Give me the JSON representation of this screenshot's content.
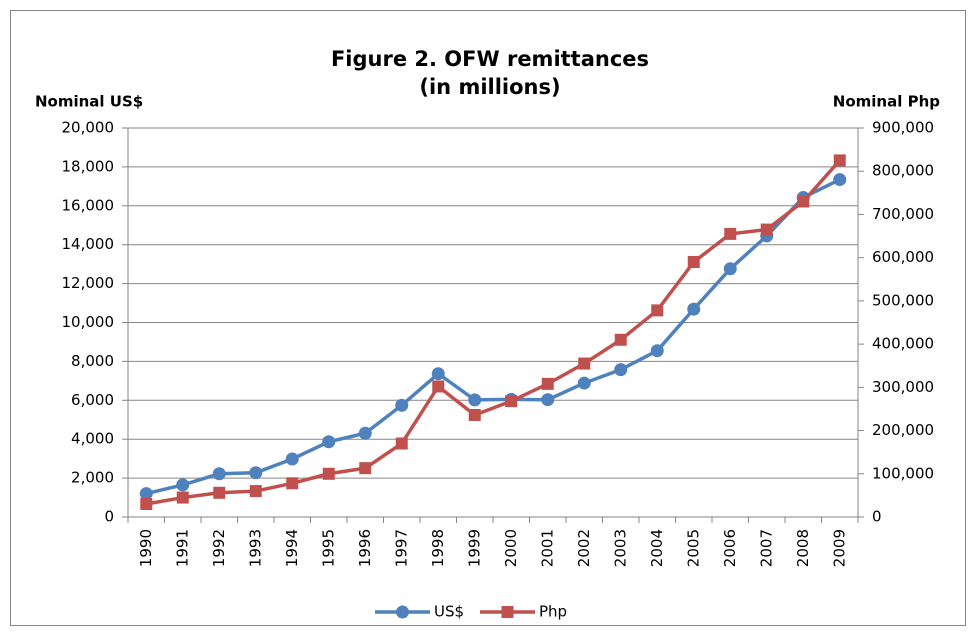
{
  "chart_data": {
    "type": "line",
    "title": [
      "Figure 2. OFW remittances",
      "(in millions)"
    ],
    "y_label": "Nominal US$",
    "y2_label": "Nominal Php",
    "categories": [
      "1990",
      "1991",
      "1992",
      "1993",
      "1994",
      "1995",
      "1996",
      "1997",
      "1998",
      "1999",
      "2000",
      "2001",
      "2002",
      "2003",
      "2004",
      "2005",
      "2006",
      "2007",
      "2008",
      "2009"
    ],
    "series": [
      {
        "name": "US$",
        "color": "#4f81bd",
        "marker": "circle",
        "values": [
          1203,
          1650,
          2222,
          2276,
          2983,
          3868,
          4306,
          5742,
          7368,
          6022,
          6050,
          6031,
          6886,
          7578,
          8550,
          10689,
          12761,
          14450,
          16426,
          17348
        ]
      },
      {
        "name": "Php",
        "color": "#c0504d",
        "marker": "square",
        "axis": "y2",
        "values": [
          30000,
          45000,
          56000,
          60000,
          78000,
          100000,
          113000,
          170000,
          302000,
          236000,
          268000,
          308000,
          355000,
          410000,
          478000,
          590000,
          655000,
          665000,
          730000,
          825000
        ]
      }
    ],
    "ylim": [
      0,
      20000
    ],
    "yticks": [
      0,
      {
        "value": 2000,
        "label": "2,000"
      },
      {
        "value": 4000,
        "label": "4,000"
      },
      {
        "value": 6000,
        "label": "6,000"
      },
      {
        "value": 8000,
        "label": "8,000"
      },
      {
        "value": 10000,
        "label": "10,000"
      },
      {
        "value": 12000,
        "label": "12,000"
      },
      {
        "value": 14000,
        "label": "14,000"
      },
      {
        "value": 16000,
        "label": "16,000"
      },
      {
        "value": 18000,
        "label": "18,000"
      },
      {
        "value": 20000,
        "label": "20,000"
      }
    ],
    "y2lim": [
      0,
      900000
    ],
    "y2ticks": [
      0,
      {
        "value": 100000,
        "label": "100,000"
      },
      {
        "value": 200000,
        "label": "200,000"
      },
      {
        "value": 300000,
        "label": "300,000"
      },
      {
        "value": 400000,
        "label": "400,000"
      },
      {
        "value": 500000,
        "label": "500,000"
      },
      {
        "value": 600000,
        "label": "600,000"
      },
      {
        "value": 700000,
        "label": "700,000"
      },
      {
        "value": 800000,
        "label": "800,000"
      },
      {
        "value": 900000,
        "label": "900,000"
      }
    ],
    "grid": true,
    "legend": "bottom"
  }
}
